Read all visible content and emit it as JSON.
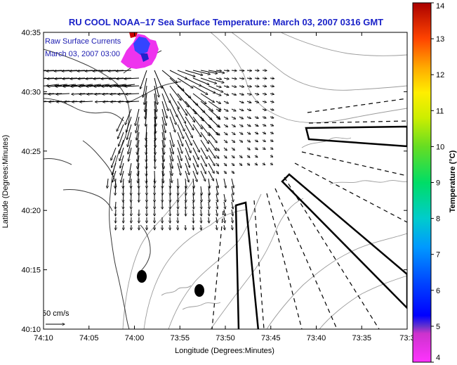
{
  "title": "RU COOL  NOAA–17  Sea Surface Temperature:  March 03, 2007 0316 GMT",
  "legend": {
    "line1": "Raw Surface Currents",
    "line2": "March 03, 2007 03:00",
    "scale_label": "50 cm/s"
  },
  "axes": {
    "xlabel": "Longitude (Degrees:Minutes)",
    "ylabel": "Latitude (Degrees:Minutes)",
    "xticks": [
      "74:10",
      "74:05",
      "74:00",
      "73:55",
      "73:50",
      "73:45",
      "73:40",
      "73:35",
      "73:3"
    ],
    "yticks": [
      "40:35",
      "40:30",
      "40:25",
      "40:20",
      "40:15",
      "40:10"
    ]
  },
  "colorbar": {
    "label": "Temperature (°C)",
    "ticks": [
      "14",
      "13",
      "12",
      "11",
      "10",
      "9",
      "8",
      "7",
      "6",
      "5",
      "4"
    ],
    "min": 4,
    "max": 14
  },
  "colors": {
    "title": "#1a22c8",
    "frame": "#000000",
    "coast": "#3a3a3a",
    "bathy": "#9a9a9a"
  }
}
